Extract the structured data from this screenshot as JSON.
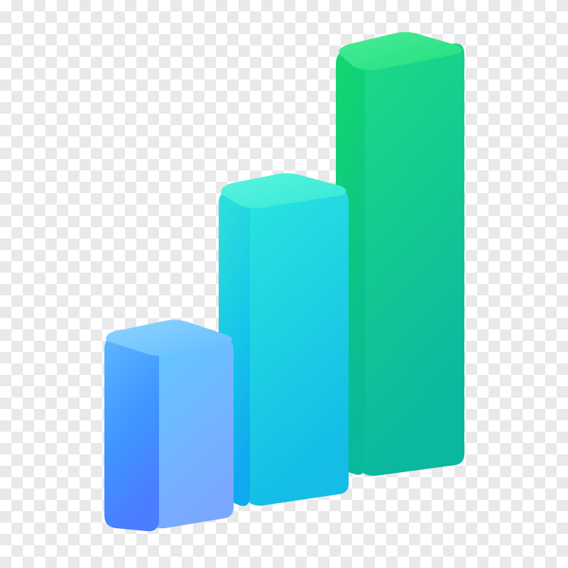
{
  "background": {
    "pattern": "transparency-checkerboard",
    "light_color": "#ffffff",
    "dark_color": "#e9e9e9"
  },
  "illustration": {
    "subject": "bar-chart-icon",
    "style": "3d-rounded-gradient",
    "bar_count": 3,
    "relative_heights": [
      1,
      2,
      3
    ],
    "bars": [
      {
        "top_color": "#7ec8ff",
        "front_light": "#5fb6ff",
        "front_dark": "#4a7dff",
        "side_light": "#63c9ff",
        "side_dark": "#5a98ff"
      },
      {
        "top_color": "#4ff0dc",
        "front_light": "#2de3d8",
        "front_dark": "#11a8ef",
        "side_light": "#29e5e0",
        "side_dark": "#13bde6"
      },
      {
        "top_color": "#3be78f",
        "front_light": "#14d86e",
        "front_dark": "#0ab89a",
        "side_light": "#1cdc84",
        "side_dark": "#0bb79f"
      }
    ]
  }
}
